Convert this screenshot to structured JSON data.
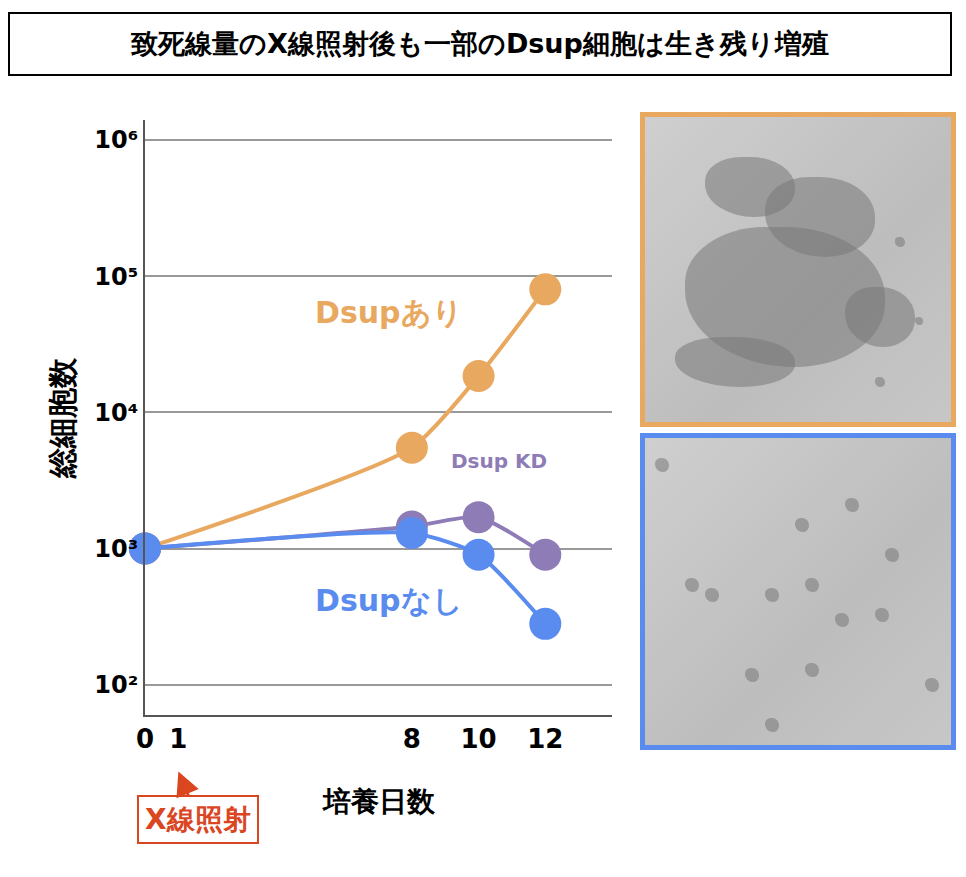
{
  "chart_data": {
    "type": "line",
    "title": "致死線量のX線照射後も一部のDsup細胞は生き残り増殖",
    "x_label": "培養日数",
    "y_label": "総細胞数",
    "x": [
      0,
      8,
      10,
      12
    ],
    "series": [
      {
        "name": "Dsupあり",
        "color": "#e9a860",
        "values": [
          1000,
          5500,
          18500,
          80000
        ],
        "marker": "circle",
        "line_style": "solid"
      },
      {
        "name": "Dsup KD",
        "color": "#8e7cb6",
        "values": [
          1000,
          1450,
          1700,
          900
        ],
        "marker": "circle",
        "line_style": "solid"
      },
      {
        "name": "Dsupなし",
        "color": "#5a8cf0",
        "values": [
          1000,
          1300,
          900,
          280
        ],
        "marker": "circle",
        "line_style": "solid"
      }
    ],
    "xlim": [
      0,
      14
    ],
    "xticks": [
      0,
      1,
      8,
      10,
      12
    ],
    "ylim": [
      60,
      1400000
    ],
    "yticks": [
      {
        "value": 100,
        "label": "10²"
      },
      {
        "value": 1000,
        "label": "10³"
      },
      {
        "value": 10000,
        "label": "10⁴"
      },
      {
        "value": 100000,
        "label": "10⁵"
      },
      {
        "value": 1000000,
        "label": "10⁶"
      }
    ],
    "log": "y",
    "grid": true,
    "annotations": [
      {
        "text": "X線照射",
        "x": 1,
        "color": "#d9461f"
      }
    ]
  }
}
